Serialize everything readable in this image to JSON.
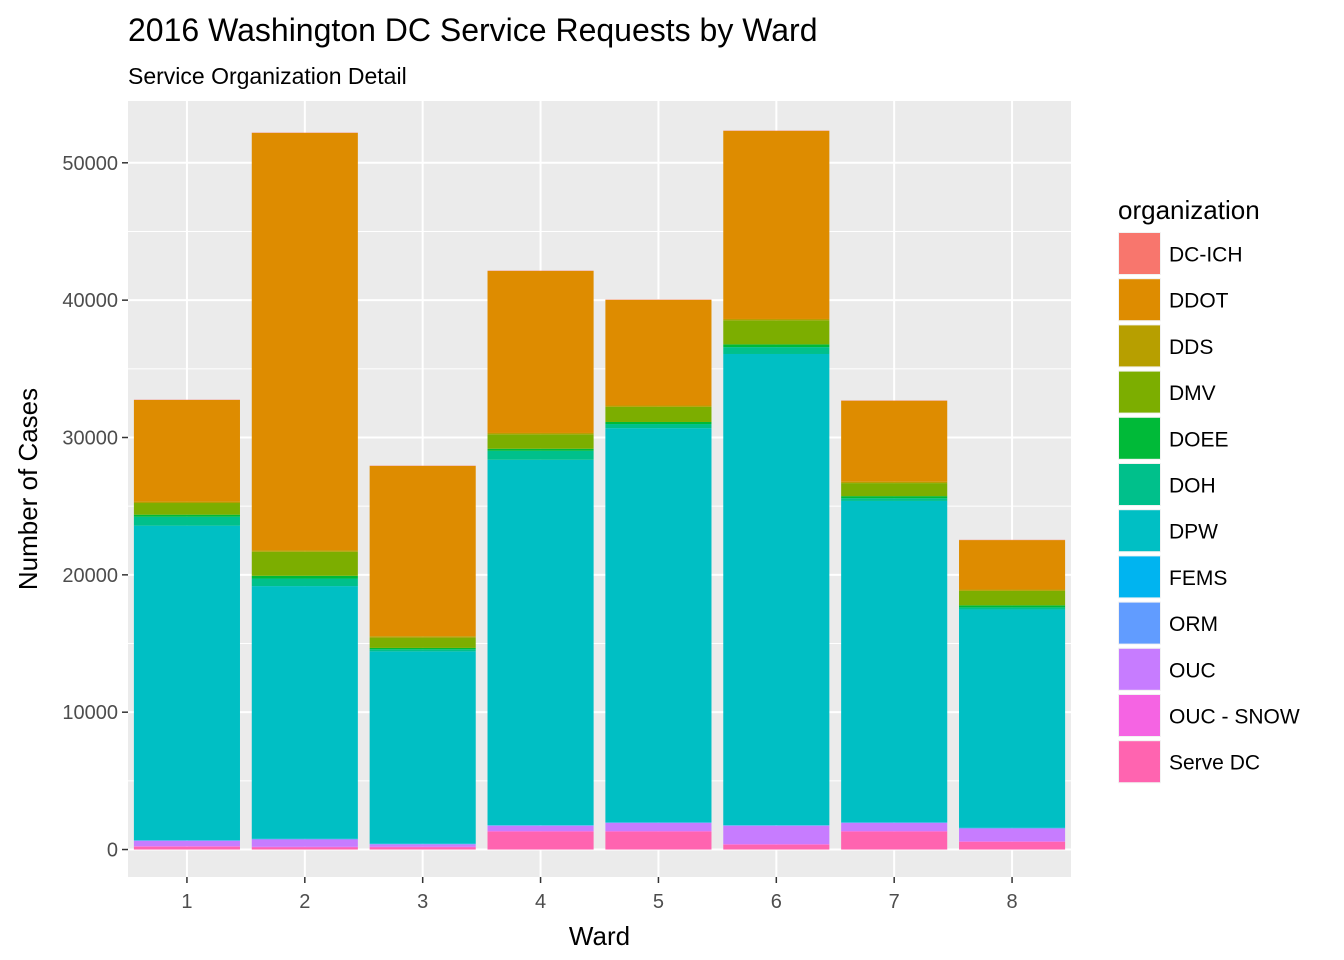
{
  "chart_data": {
    "type": "bar",
    "stacked": true,
    "title": "2016 Washington DC Service Requests by Ward",
    "subtitle": "Service Organization Detail",
    "xlabel": "Ward",
    "ylabel": "Number of Cases",
    "categories": [
      "1",
      "2",
      "3",
      "4",
      "5",
      "6",
      "7",
      "8"
    ],
    "ylim": [
      -2000,
      54500
    ],
    "yticks": [
      0,
      10000,
      20000,
      30000,
      40000,
      50000
    ],
    "ytick_labels": [
      "0",
      "10000",
      "20000",
      "30000",
      "40000",
      "50000"
    ],
    "grid": true,
    "legend_title": "organization",
    "legend_position": "right",
    "series": [
      {
        "name": "DC-ICH",
        "color": "#F8766D",
        "values": [
          20,
          20,
          20,
          20,
          20,
          20,
          20,
          20
        ]
      },
      {
        "name": "DDOT",
        "color": "#DE8C00",
        "values": [
          7400,
          30400,
          12400,
          11800,
          7700,
          13700,
          5900,
          3600
        ]
      },
      {
        "name": "DDS",
        "color": "#B79F00",
        "values": [
          100,
          100,
          100,
          100,
          100,
          100,
          100,
          100
        ]
      },
      {
        "name": "DMV",
        "color": "#7CAE00",
        "values": [
          850,
          1750,
          750,
          1050,
          1100,
          1750,
          950,
          1050
        ]
      },
      {
        "name": "DOEE",
        "color": "#00BA38",
        "values": [
          150,
          200,
          100,
          150,
          150,
          200,
          150,
          150
        ]
      },
      {
        "name": "DOH",
        "color": "#00C08B",
        "values": [
          650,
          550,
          150,
          650,
          300,
          500,
          200,
          150
        ]
      },
      {
        "name": "DPW",
        "color": "#00BFC4",
        "values": [
          22900,
          18400,
          14000,
          26600,
          28700,
          34300,
          23400,
          15900
        ]
      },
      {
        "name": "FEMS",
        "color": "#00B4F0",
        "values": [
          20,
          20,
          20,
          20,
          20,
          20,
          20,
          20
        ]
      },
      {
        "name": "ORM",
        "color": "#619CFF",
        "values": [
          30,
          30,
          30,
          30,
          30,
          30,
          30,
          30
        ]
      },
      {
        "name": "OUC",
        "color": "#C77CFF",
        "values": [
          380,
          530,
          180,
          380,
          580,
          1330,
          580,
          930
        ]
      },
      {
        "name": "OUC - SNOW",
        "color": "#F564E3",
        "values": [
          50,
          50,
          50,
          50,
          50,
          50,
          50,
          50
        ]
      },
      {
        "name": "Serve DC",
        "color": "#FF64B0",
        "values": [
          200,
          150,
          150,
          1300,
          1300,
          350,
          1300,
          550
        ]
      }
    ]
  }
}
